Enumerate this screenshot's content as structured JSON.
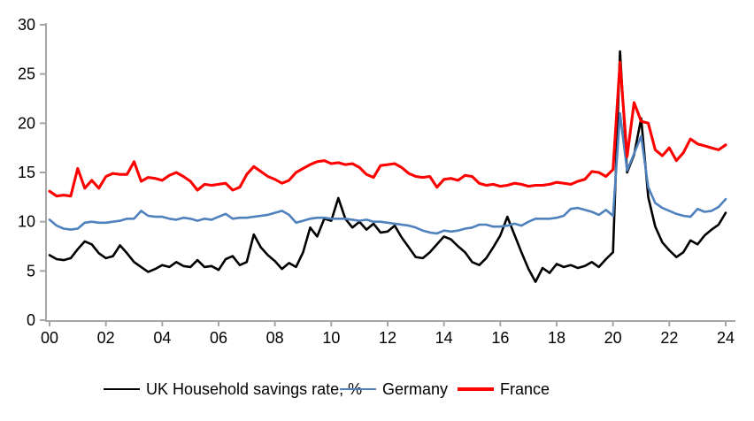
{
  "chart_data": {
    "type": "line",
    "title": "",
    "frequency": "quarterly",
    "x_start_year": 2000,
    "x_step_years": 0.25,
    "x_axis": {
      "tick_labels": [
        "00",
        "02",
        "04",
        "06",
        "08",
        "10",
        "12",
        "14",
        "16",
        "18",
        "20",
        "22",
        "24"
      ],
      "ticks_every_points": 8
    },
    "y_axis": {
      "min": 0,
      "max": 30,
      "step": 5,
      "tick_labels": [
        "0",
        "5",
        "10",
        "15",
        "20",
        "25",
        "30"
      ]
    },
    "grid": "off",
    "legend_position": "bottom",
    "colors": {
      "axis": "#A6A6A6",
      "text": "#000000",
      "background": "#FFFFFF"
    },
    "series": [
      {
        "name": "UK Household savings rate, %",
        "color": "#000000",
        "stroke_width": 2.6,
        "values": [
          6.6,
          6.2,
          6.1,
          6.3,
          7.2,
          8.0,
          7.7,
          6.8,
          6.3,
          6.5,
          7.6,
          6.8,
          5.9,
          5.4,
          4.9,
          5.2,
          5.6,
          5.4,
          5.9,
          5.5,
          5.4,
          6.1,
          5.4,
          5.5,
          5.1,
          6.2,
          6.5,
          5.6,
          5.9,
          8.7,
          7.4,
          6.6,
          6.0,
          5.2,
          5.8,
          5.4,
          6.9,
          9.4,
          8.5,
          10.3,
          10.1,
          12.4,
          10.3,
          9.4,
          10.0,
          9.2,
          9.8,
          8.9,
          9.0,
          9.6,
          8.4,
          7.4,
          6.4,
          6.3,
          6.9,
          7.7,
          8.5,
          8.2,
          7.5,
          6.9,
          5.9,
          5.6,
          6.3,
          7.4,
          8.6,
          10.5,
          8.7,
          6.9,
          5.2,
          3.9,
          5.3,
          4.8,
          5.7,
          5.4,
          5.6,
          5.3,
          5.5,
          5.9,
          5.4,
          6.2,
          6.9,
          27.3,
          15.0,
          16.8,
          20.5,
          12.5,
          9.5,
          7.9,
          7.1,
          6.4,
          6.9,
          8.1,
          7.7,
          8.6,
          9.2,
          9.7,
          10.9
        ]
      },
      {
        "name": "Germany",
        "color": "#4F81BD",
        "stroke_width": 2.6,
        "values": [
          10.2,
          9.6,
          9.3,
          9.2,
          9.3,
          9.9,
          10.0,
          9.9,
          9.9,
          10.0,
          10.1,
          10.3,
          10.3,
          11.1,
          10.6,
          10.5,
          10.5,
          10.3,
          10.2,
          10.4,
          10.3,
          10.1,
          10.3,
          10.2,
          10.5,
          10.8,
          10.3,
          10.4,
          10.4,
          10.5,
          10.6,
          10.7,
          10.9,
          11.1,
          10.7,
          9.9,
          10.1,
          10.3,
          10.4,
          10.4,
          10.3,
          10.3,
          10.3,
          10.2,
          10.1,
          10.2,
          10.0,
          10.0,
          9.9,
          9.8,
          9.7,
          9.6,
          9.4,
          9.1,
          8.9,
          8.8,
          9.1,
          9.0,
          9.1,
          9.3,
          9.4,
          9.7,
          9.7,
          9.5,
          9.5,
          9.6,
          9.8,
          9.6,
          10.0,
          10.3,
          10.3,
          10.3,
          10.4,
          10.6,
          11.3,
          11.4,
          11.2,
          11.0,
          10.7,
          11.2,
          10.6,
          21.0,
          15.2,
          16.9,
          18.7,
          13.5,
          11.9,
          11.4,
          11.1,
          10.8,
          10.6,
          10.5,
          11.3,
          11.0,
          11.1,
          11.5,
          12.3
        ]
      },
      {
        "name": "France",
        "color": "#FF0000",
        "stroke_width": 3.1,
        "values": [
          13.1,
          12.6,
          12.7,
          12.6,
          15.4,
          13.4,
          14.2,
          13.4,
          14.6,
          14.9,
          14.8,
          14.8,
          16.1,
          14.1,
          14.5,
          14.4,
          14.2,
          14.7,
          15.0,
          14.6,
          14.1,
          13.2,
          13.8,
          13.7,
          13.8,
          13.9,
          13.2,
          13.5,
          14.8,
          15.6,
          15.1,
          14.6,
          14.3,
          13.9,
          14.2,
          15.0,
          15.4,
          15.8,
          16.1,
          16.2,
          15.9,
          16.0,
          15.8,
          15.9,
          15.5,
          14.8,
          14.5,
          15.7,
          15.8,
          15.9,
          15.5,
          14.9,
          14.6,
          14.5,
          14.6,
          13.5,
          14.3,
          14.4,
          14.2,
          14.7,
          14.6,
          13.9,
          13.7,
          13.8,
          13.6,
          13.7,
          13.9,
          13.8,
          13.6,
          13.7,
          13.7,
          13.8,
          14.0,
          13.9,
          13.8,
          14.1,
          14.3,
          15.1,
          15.0,
          14.6,
          15.3,
          26.2,
          16.6,
          22.1,
          20.2,
          20.0,
          17.3,
          16.7,
          17.5,
          16.2,
          17.0,
          18.4,
          17.9,
          17.7,
          17.5,
          17.3,
          17.8
        ]
      }
    ]
  },
  "legend": {
    "items": [
      {
        "label": "UK Household savings rate, %"
      },
      {
        "label": "Germany"
      },
      {
        "label": "France"
      }
    ]
  }
}
